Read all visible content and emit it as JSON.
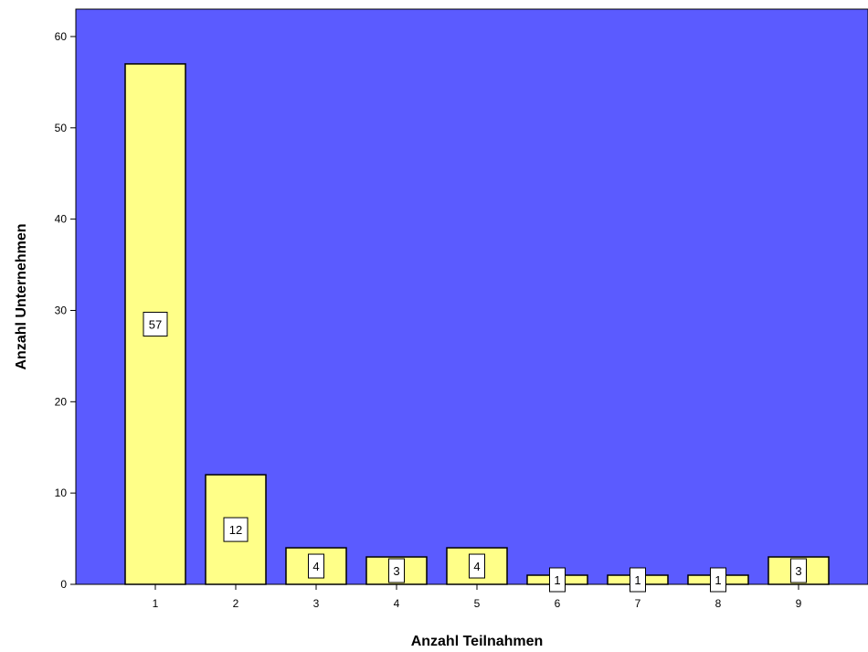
{
  "chart_data": {
    "type": "bar",
    "categories": [
      "1",
      "2",
      "3",
      "4",
      "5",
      "6",
      "7",
      "8",
      "9"
    ],
    "values": [
      57,
      12,
      4,
      3,
      4,
      1,
      1,
      1,
      3
    ],
    "title": "",
    "xlabel": "Anzahl Teilnahmen",
    "ylabel": "Anzahl Unternehmen",
    "ylim": [
      0,
      63
    ],
    "yticks": [
      "0",
      "10",
      "20",
      "30",
      "40",
      "50",
      "60"
    ],
    "grid": false,
    "colors": {
      "plot_background": "#5B5BFF",
      "bar_fill": "#FFFF88",
      "bar_stroke": "#000000",
      "label_box": "#FFFFFF"
    }
  }
}
